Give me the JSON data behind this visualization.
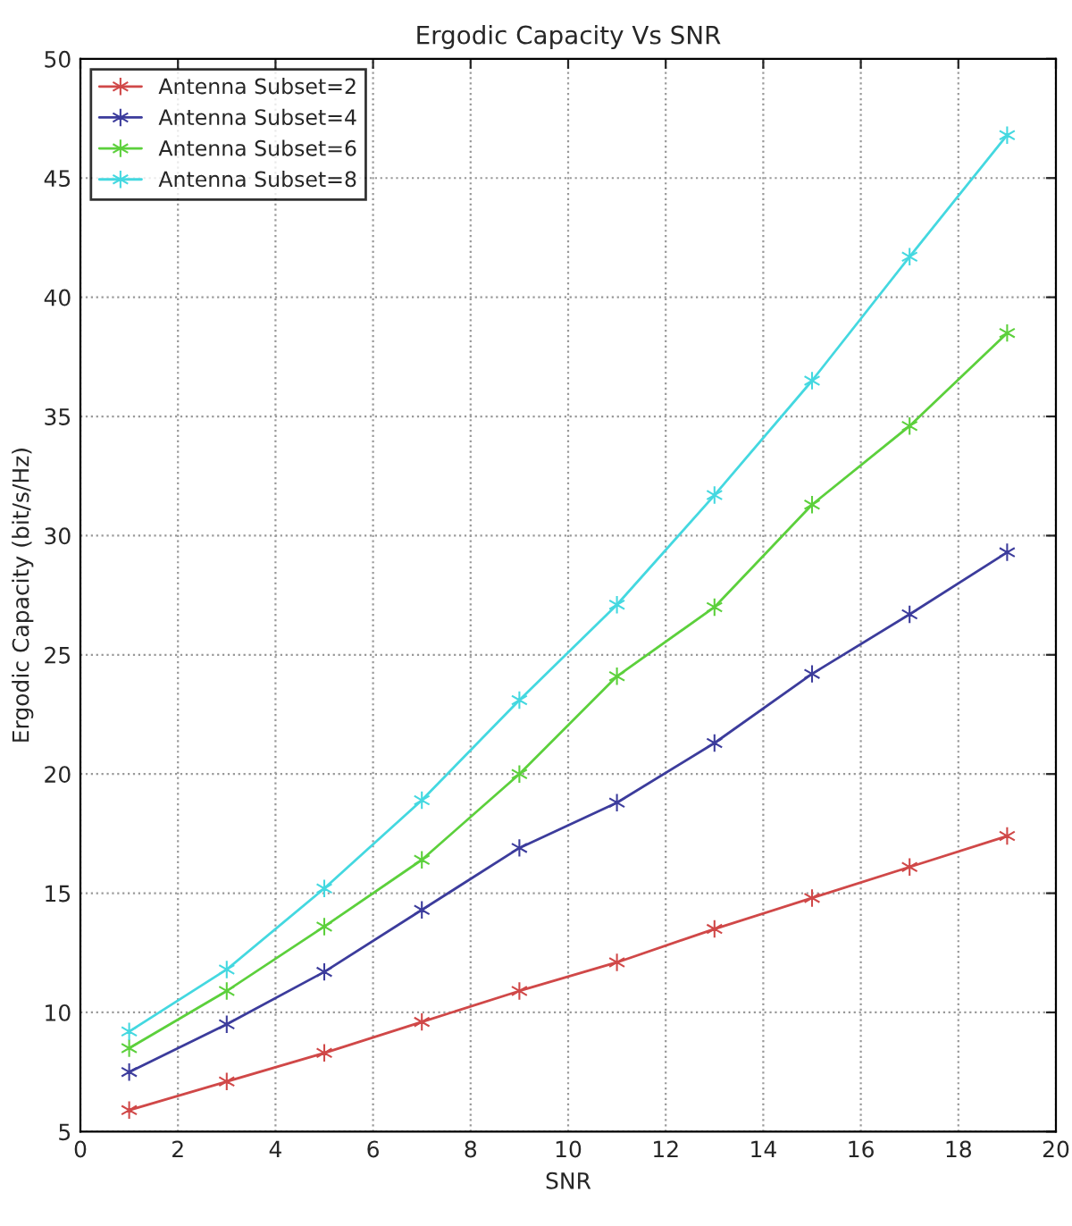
{
  "chart_data": {
    "type": "line",
    "title": "Ergodic Capacity Vs SNR",
    "xlabel": "SNR",
    "ylabel": "Ergodic Capacity (bit/s/Hz)",
    "x": [
      1,
      3,
      5,
      7,
      9,
      11,
      13,
      15,
      17,
      19
    ],
    "series": [
      {
        "name": "Antenna Subset=2",
        "color": "#d04848",
        "values": [
          5.9,
          7.1,
          8.3,
          9.6,
          10.9,
          12.1,
          13.5,
          14.8,
          16.1,
          17.4
        ]
      },
      {
        "name": "Antenna Subset=4",
        "color": "#3c3c9c",
        "values": [
          7.5,
          9.5,
          11.7,
          14.3,
          16.9,
          18.8,
          21.3,
          24.2,
          26.7,
          29.3
        ]
      },
      {
        "name": "Antenna Subset=6",
        "color": "#5cd03c",
        "values": [
          8.5,
          10.9,
          13.6,
          16.4,
          20.0,
          24.1,
          27.0,
          31.3,
          34.6,
          38.5
        ]
      },
      {
        "name": "Antenna Subset=8",
        "color": "#44d8e0",
        "values": [
          9.2,
          11.8,
          15.2,
          18.9,
          23.1,
          27.1,
          31.7,
          36.5,
          41.7,
          46.8
        ]
      }
    ],
    "xlim": [
      0,
      20
    ],
    "xticks": [
      0,
      2,
      4,
      6,
      8,
      10,
      12,
      14,
      16,
      18,
      20
    ],
    "ylim": [
      5,
      50
    ],
    "yticks": [
      5,
      10,
      15,
      20,
      25,
      30,
      35,
      40,
      45,
      50
    ],
    "grid": true,
    "legend": "top left",
    "marker": "cross",
    "line_style": "solid"
  }
}
